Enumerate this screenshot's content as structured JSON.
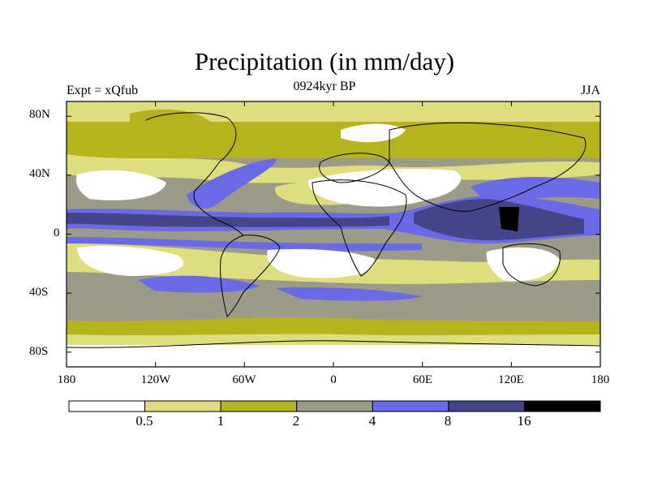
{
  "chart_data": {
    "type": "heatmap",
    "title": "Precipitation (in mm/day)",
    "subtitle": "0924kyr BP",
    "left_label": "Expt = xQfub",
    "right_label": "JJA",
    "x_ticks": [
      "180",
      "120W",
      "60W",
      "0",
      "60E",
      "120E",
      "180"
    ],
    "y_ticks": [
      "80N",
      "40N",
      "0",
      "40S",
      "80S"
    ],
    "xlim": [
      -180,
      180
    ],
    "ylim": [
      -90,
      90
    ],
    "colorbar": {
      "levels": [
        "0.5",
        "1",
        "2",
        "4",
        "8",
        "16"
      ],
      "colors": [
        "#ffffff",
        "#dede7e",
        "#b4b41e",
        "#9c9a88",
        "#6a6ae6",
        "#444488",
        "#000000"
      ]
    }
  }
}
